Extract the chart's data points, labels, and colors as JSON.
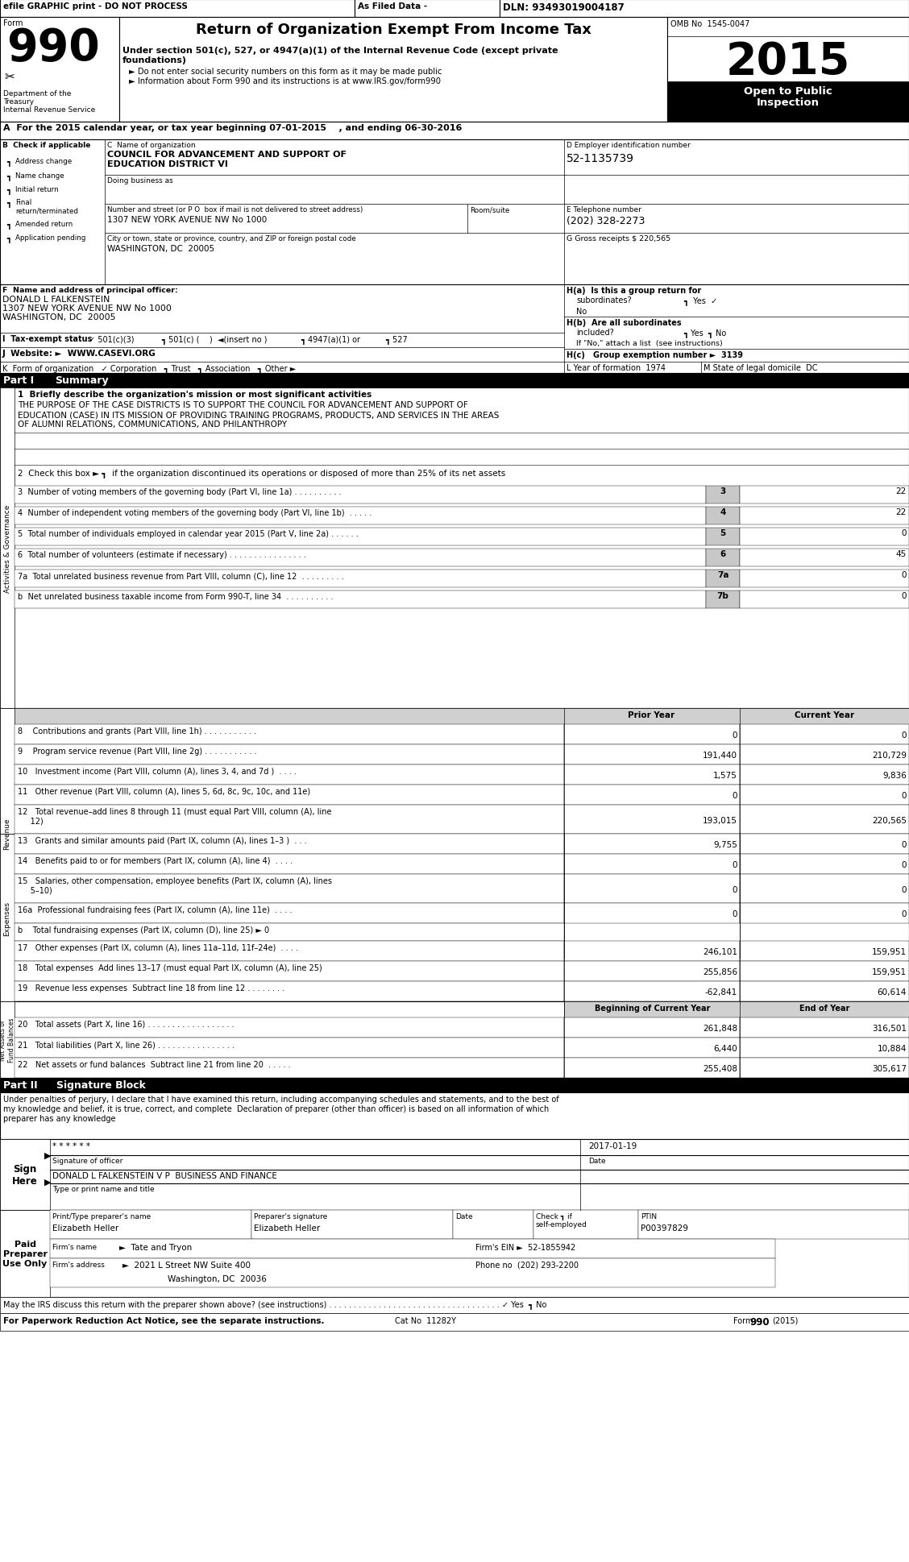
{
  "dln": "DLN: 93493019004187",
  "efile_header": "efile GRAPHIC print - DO NOT PROCESS",
  "as_filed": "As Filed Data -",
  "form_number": "990",
  "title": "Return of Organization Exempt From Income Tax",
  "subtitle1": "Under section 501(c), 527, or 4947(a)(1) of the Internal Revenue Code (except private",
  "subtitle2": "foundations)",
  "bullet1": "► Do not enter social security numbers on this form as it may be made public",
  "bullet2": "► Information about Form 990 and its instructions is at www.IRS.gov/form990",
  "omb": "OMB No  1545-0047",
  "year": "2015",
  "section_a": "A  For the 2015 calendar year, or tax year beginning 07-01-2015    , and ending 06-30-2016",
  "ein": "52-1135739",
  "phone": "(202) 328-2273",
  "gross": "220,565",
  "sig_perjury_1": "Under penalties of perjury, I declare that I have examined this return, including accompanying schedules and statements, and to the best of",
  "sig_perjury_2": "my knowledge and belief, it is true, correct, and complete  Declaration of preparer (other than officer) is based on all information of which",
  "sig_perjury_3": "preparer has any knowledge",
  "sig_date": "2017-01-19",
  "sig_name": "DONALD L FALKENSTEIN V P  BUSINESS AND FINANCE",
  "preparer_name": "Elizabeth Heller",
  "preparer_sig": "Elizabeth Heller",
  "preparer_ptin_val": "P00397829",
  "firm_ein": "52-1855942",
  "firm_phone": "(202) 293-2200",
  "col_prior": "Prior Year",
  "col_current": "Current Year",
  "col_beg": "Beginning of Current Year",
  "col_end": "End of Year"
}
